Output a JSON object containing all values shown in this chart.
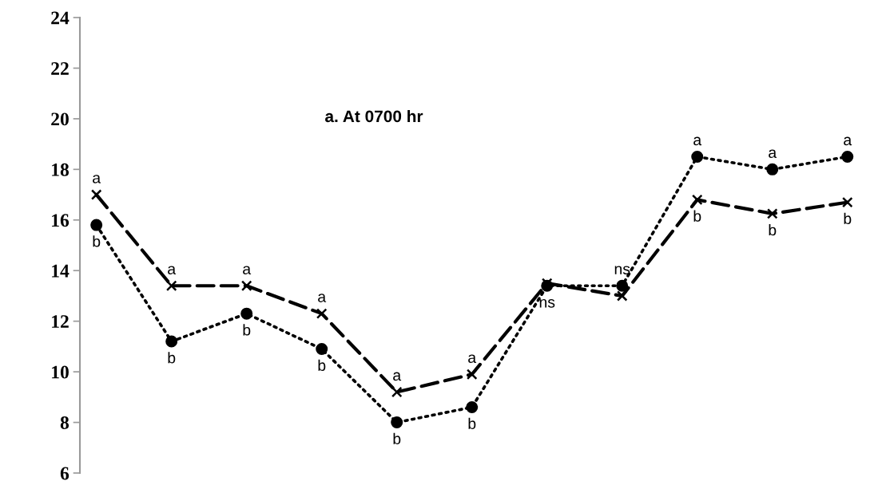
{
  "chart_data": {
    "type": "line",
    "title": "a. At 0700 hr",
    "categories": [
      null,
      null,
      null,
      null,
      null,
      null,
      null,
      null,
      null,
      null,
      null
    ],
    "series": [
      {
        "color": "#000000",
        "marker": "cross",
        "line_style": "dashed",
        "values": [
          17.0,
          13.4,
          13.4,
          12.3,
          9.2,
          9.9,
          13.5,
          13.0,
          16.8,
          16.25,
          16.7
        ],
        "value_labels": [
          "a",
          "a",
          "a",
          "a",
          "a",
          "a",
          null,
          null,
          "b",
          "b",
          "b"
        ]
      },
      {
        "color": "#000000",
        "marker": "circle",
        "line_style": "dotted",
        "values": [
          15.8,
          11.2,
          12.3,
          10.9,
          8.0,
          8.6,
          13.4,
          13.4,
          18.5,
          18.0,
          18.5
        ],
        "value_labels": [
          "b",
          "b",
          "b",
          "b",
          "b",
          "b",
          "ns",
          "ns",
          "a",
          "a",
          "a"
        ]
      }
    ],
    "ylim": [
      6,
      24
    ],
    "yticks": [
      6,
      8,
      10,
      12,
      14,
      16,
      18,
      20,
      22,
      24
    ],
    "tick_labels": "y",
    "grid": false
  }
}
